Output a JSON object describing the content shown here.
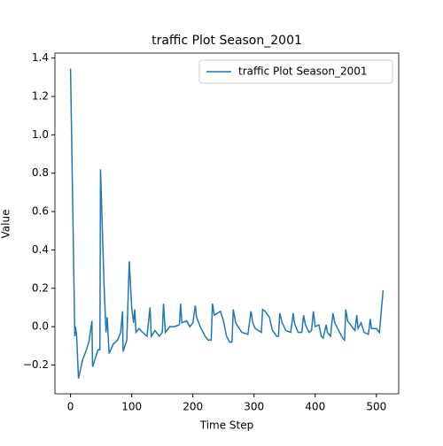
{
  "chart_data": {
    "type": "line",
    "title": "traffic Plot Season_2001",
    "xlabel": "Time Step",
    "ylabel": "Value",
    "x": [
      0,
      7,
      8,
      10,
      13,
      20,
      25,
      30,
      35,
      36,
      42,
      45,
      48,
      49,
      55,
      58,
      60,
      63,
      70,
      77,
      82,
      85,
      86,
      92,
      96,
      100,
      103,
      105,
      107,
      112,
      118,
      125,
      130,
      132,
      138,
      145,
      150,
      152,
      155,
      162,
      170,
      178,
      180,
      182,
      190,
      195,
      200,
      204,
      206,
      212,
      220,
      225,
      230,
      232,
      235,
      245,
      250,
      255,
      260,
      264,
      266,
      270,
      280,
      290,
      295,
      298,
      302,
      312,
      314,
      318,
      325,
      330,
      337,
      340,
      342,
      346,
      352,
      360,
      364,
      366,
      372,
      378,
      381,
      384,
      390,
      394,
      397,
      400,
      406,
      410,
      413,
      418,
      420,
      425,
      429,
      432,
      440,
      445,
      448,
      450,
      453,
      460,
      465,
      468,
      470,
      475,
      480,
      487,
      490,
      492,
      500,
      505,
      511
    ],
    "series": [
      {
        "name": "traffic Plot Season_2001",
        "color": "#1f77b4",
        "values": [
          1.345,
          -0.05,
          0.0,
          -0.05,
          -0.27,
          -0.17,
          -0.13,
          -0.08,
          0.03,
          -0.21,
          -0.15,
          -0.12,
          -0.12,
          0.82,
          0.2,
          -0.03,
          0.05,
          -0.14,
          -0.09,
          -0.07,
          -0.03,
          0.08,
          -0.13,
          -0.07,
          0.34,
          0.1,
          0.02,
          0.09,
          -0.03,
          -0.01,
          -0.03,
          -0.05,
          0.1,
          -0.05,
          -0.02,
          -0.05,
          -0.03,
          0.12,
          -0.03,
          0.0,
          0.0,
          0.01,
          0.12,
          0.02,
          0.03,
          0.0,
          0.02,
          0.11,
          0.05,
          0.0,
          -0.05,
          -0.07,
          -0.07,
          0.12,
          0.06,
          0.08,
          0.03,
          -0.05,
          -0.08,
          -0.08,
          0.09,
          0.02,
          -0.03,
          -0.04,
          0.08,
          0.02,
          -0.01,
          -0.03,
          0.09,
          0.08,
          0.05,
          -0.02,
          -0.05,
          -0.05,
          0.07,
          0.02,
          -0.02,
          -0.03,
          0.07,
          0.02,
          -0.03,
          -0.03,
          0.06,
          0.01,
          -0.03,
          -0.02,
          0.08,
          0.0,
          0.01,
          -0.05,
          -0.06,
          0.01,
          -0.03,
          -0.05,
          0.07,
          0.02,
          -0.03,
          -0.06,
          -0.07,
          0.09,
          0.03,
          0.0,
          -0.02,
          0.06,
          -0.01,
          0.02,
          -0.03,
          -0.04,
          0.04,
          -0.01,
          -0.01,
          -0.03,
          0.19
        ]
      }
    ],
    "xlim": [
      -25.5,
      536.5
    ],
    "ylim": [
      -0.35,
      1.426
    ],
    "xticks": [
      0,
      100,
      200,
      300,
      400,
      500
    ],
    "yticks": [
      {
        "value": -0.2,
        "label": "−0.2"
      },
      {
        "value": 0,
        "label": "0.0"
      },
      {
        "value": 0.2,
        "label": "0.2"
      },
      {
        "value": 0.4,
        "label": "0.4"
      },
      {
        "value": 0.6,
        "label": "0.6"
      },
      {
        "value": 0.8,
        "label": "0.8"
      },
      {
        "value": 1,
        "label": "1.0"
      },
      {
        "value": 1.2,
        "label": "1.2"
      },
      {
        "value": 1.4,
        "label": "1.4"
      }
    ],
    "grid": false,
    "legend": "upper right"
  }
}
